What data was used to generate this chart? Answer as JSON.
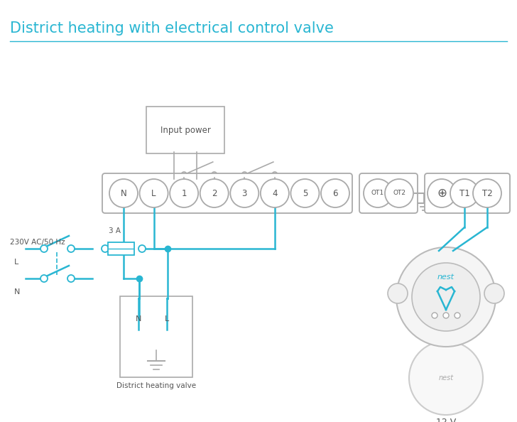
{
  "title": "District heating with electrical control valve",
  "title_color": "#29b6d2",
  "title_fontsize": 15,
  "bg_color": "#ffffff",
  "line_color": "#29b6d2",
  "box_color": "#aaaaaa",
  "text_color": "#555555",
  "wire_lw": 1.8,
  "terminal_labels_main": [
    "N",
    "L",
    "1",
    "2",
    "3",
    "4",
    "5",
    "6"
  ],
  "terminal_labels_ot": [
    "OT1",
    "OT2"
  ],
  "terminal_labels_right": [
    "T1",
    "T2"
  ]
}
